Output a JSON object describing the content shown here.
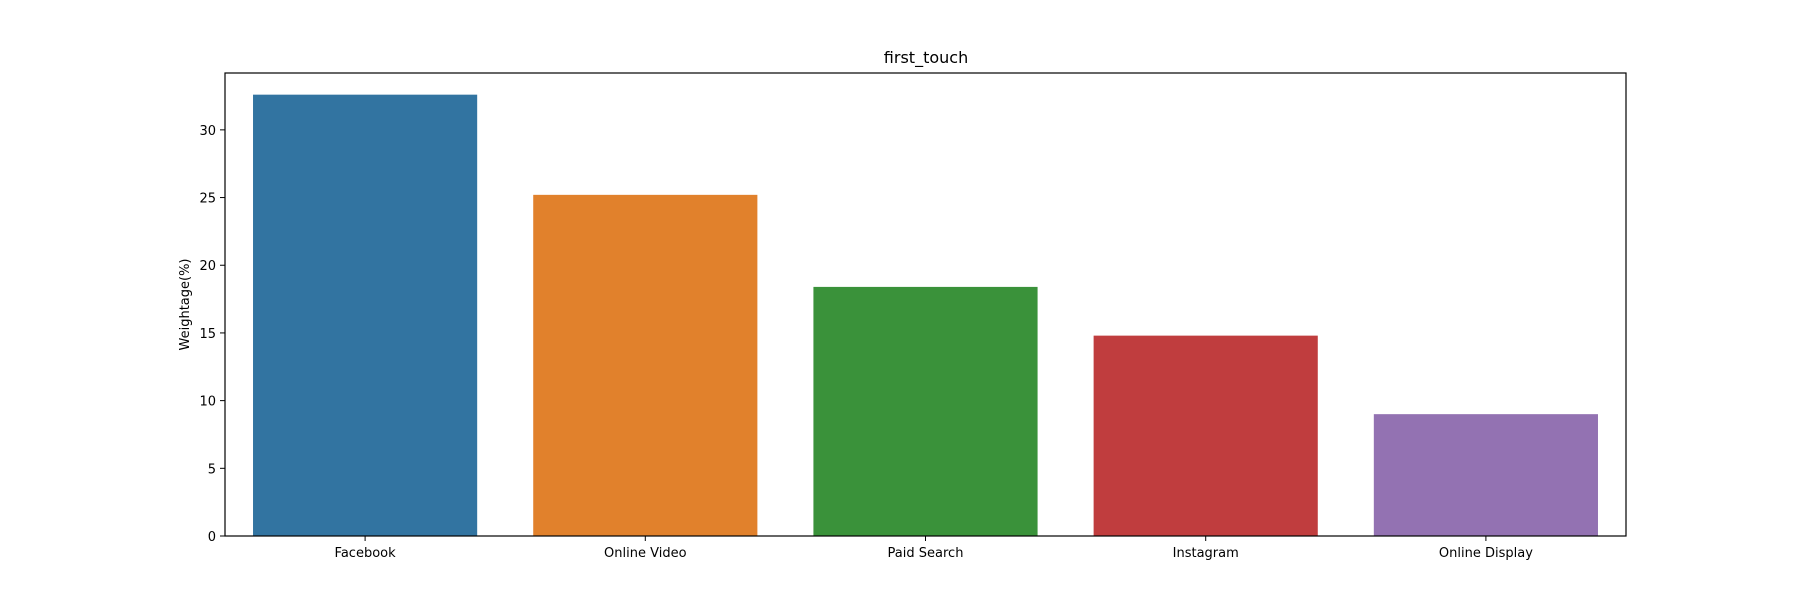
{
  "chart_data": {
    "type": "bar",
    "title": "first_touch",
    "xlabel": "",
    "ylabel": "Weightage(%)",
    "categories": [
      "Facebook",
      "Online Video",
      "Paid Search",
      "Instagram",
      "Online Display"
    ],
    "values": [
      32.6,
      25.2,
      18.4,
      14.8,
      9.0
    ],
    "colors": [
      "#3274a1",
      "#e1812c",
      "#3a923a",
      "#c03d3e",
      "#9372b2"
    ],
    "ylim": [
      0,
      34.2
    ],
    "yticks": [
      "0",
      "5",
      "10",
      "15",
      "20",
      "25",
      "30"
    ],
    "grid": false,
    "legend": "none"
  }
}
